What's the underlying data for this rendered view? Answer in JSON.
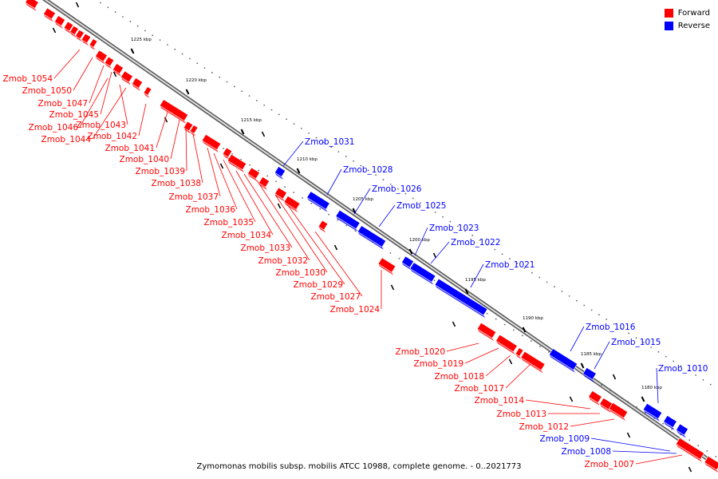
{
  "caption": "Zymomonas mobilis subsp. mobilis ATCC 10988, complete genome. - 0..2021773",
  "colors": {
    "forward": "#ff0000",
    "reverse": "#0000ff"
  },
  "legend": [
    {
      "label": "Forward",
      "color": "#ff0000"
    },
    {
      "label": "Reverse",
      "color": "#0000ff"
    }
  ],
  "ticks": [
    "1225 kbp",
    "1220 kbp",
    "1215 kbp",
    "1210 kbp",
    "1205 kbp",
    "1200 kbp",
    "1195 kbp",
    "1190 kbp",
    "1185 kbp",
    "1180 kbp"
  ],
  "forward_genes": [
    "Zmob_1054",
    "Zmob_1050",
    "Zmob_1047",
    "Zmob_1045",
    "Zmob_1046",
    "Zmob_1043",
    "Zmob_1044",
    "Zmob_1042",
    "Zmob_1041",
    "Zmob_1040",
    "Zmob_1039",
    "Zmob_1038",
    "Zmob_1037",
    "Zmob_1036",
    "Zmob_1035",
    "Zmob_1034",
    "Zmob_1033",
    "Zmob_1032",
    "Zmob_1030",
    "Zmob_1029",
    "Zmob_1027",
    "Zmob_1024",
    "Zmob_1020",
    "Zmob_1019",
    "Zmob_1018",
    "Zmob_1017",
    "Zmob_1014",
    "Zmob_1013",
    "Zmob_1012",
    "Zmob_1007"
  ],
  "reverse_genes": [
    "Zmob_1031",
    "Zmob_1028",
    "Zmob_1026",
    "Zmob_1025",
    "Zmob_1023",
    "Zmob_1022",
    "Zmob_1021",
    "Zmob_1016",
    "Zmob_1015",
    "Zmob_1010",
    "Zmob_1009",
    "Zmob_1008"
  ]
}
